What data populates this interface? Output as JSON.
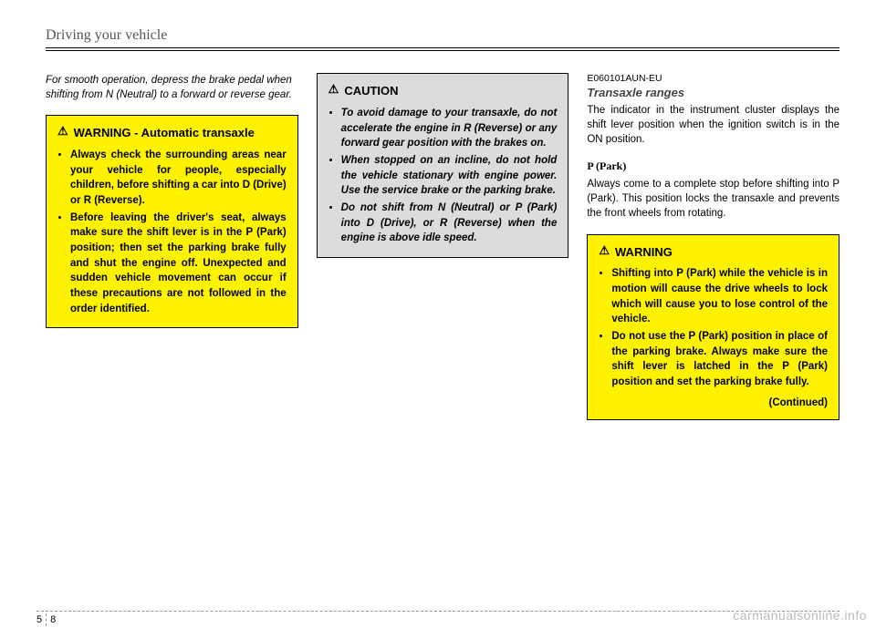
{
  "header": "Driving your vehicle",
  "col1": {
    "intro": "For smooth operation, depress the brake pedal when shifting from N (Neutral) to a forward or reverse gear.",
    "warning": {
      "title": "WARNING",
      "subtitle": "- Automatic transaxle",
      "items": [
        "Always check the surrounding areas near your vehicle for people, especially children, before shifting a car into D (Drive) or R (Reverse).",
        "Before leaving the driver's seat, always make sure the shift lever is in the P (Park) position; then set the parking brake fully and shut the engine off. Unexpected and sudden vehicle movement can occur if these precautions are not followed in the order identified."
      ]
    }
  },
  "col2": {
    "caution": {
      "title": "CAUTION",
      "items": [
        "To avoid damage to your transaxle, do not accelerate the engine in R (Reverse) or any forward gear position with the brakes on.",
        "When stopped on an incline, do not hold the vehicle stationary with engine power. Use the service brake or the parking brake.",
        "Do not shift from N (Neutral) or P (Park) into D (Drive), or R (Reverse) when the engine is above idle speed."
      ]
    }
  },
  "col3": {
    "code": "E060101AUN-EU",
    "subhead": "Transaxle ranges",
    "body1": "The indicator in the instrument cluster displays the shift lever position when the ignition switch is in the ON position.",
    "pHead": "P (Park)",
    "body2": "Always come to a complete stop before shifting into P (Park). This position locks the transaxle and prevents the front wheels from rotating.",
    "warning": {
      "title": "WARNING",
      "items": [
        "Shifting into P (Park) while the vehicle is in motion will cause the drive wheels to lock which will cause you to lose control of the vehicle.",
        "Do not use the P (Park) position in place of the parking brake. Always make sure the shift lever is latched in the P (Park) position and set the parking brake fully."
      ],
      "continued": "(Continued)"
    }
  },
  "footer": {
    "section": "5",
    "page": "8"
  },
  "watermark": "carmanualsonline.info"
}
